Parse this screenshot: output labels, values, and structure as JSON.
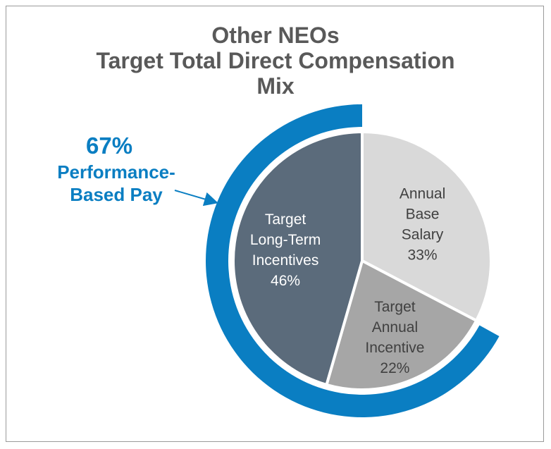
{
  "chart_data": {
    "type": "pie",
    "title_lines": [
      "Other NEOs",
      "Target Total Direct Compensation",
      "Mix"
    ],
    "slices": [
      {
        "label_lines": [
          "Annual",
          "Base",
          "Salary"
        ],
        "value": 33,
        "value_label": "33%",
        "color": "#d9d9d9",
        "text_color": "#404040"
      },
      {
        "label_lines": [
          "Target",
          "Annual",
          "Incentive"
        ],
        "value": 22,
        "value_label": "22%",
        "color": "#a6a6a6",
        "text_color": "#404040"
      },
      {
        "label_lines": [
          "Target",
          "Long-Term",
          "Incentives"
        ],
        "value": 46,
        "value_label": "46%",
        "color": "#5b6b7b",
        "text_color": "#ffffff"
      }
    ],
    "outer_ring": {
      "value": 67,
      "value_label": "67%",
      "label_lines": [
        "Performance-",
        "Based Pay"
      ],
      "color": "#0a7ec2"
    }
  }
}
